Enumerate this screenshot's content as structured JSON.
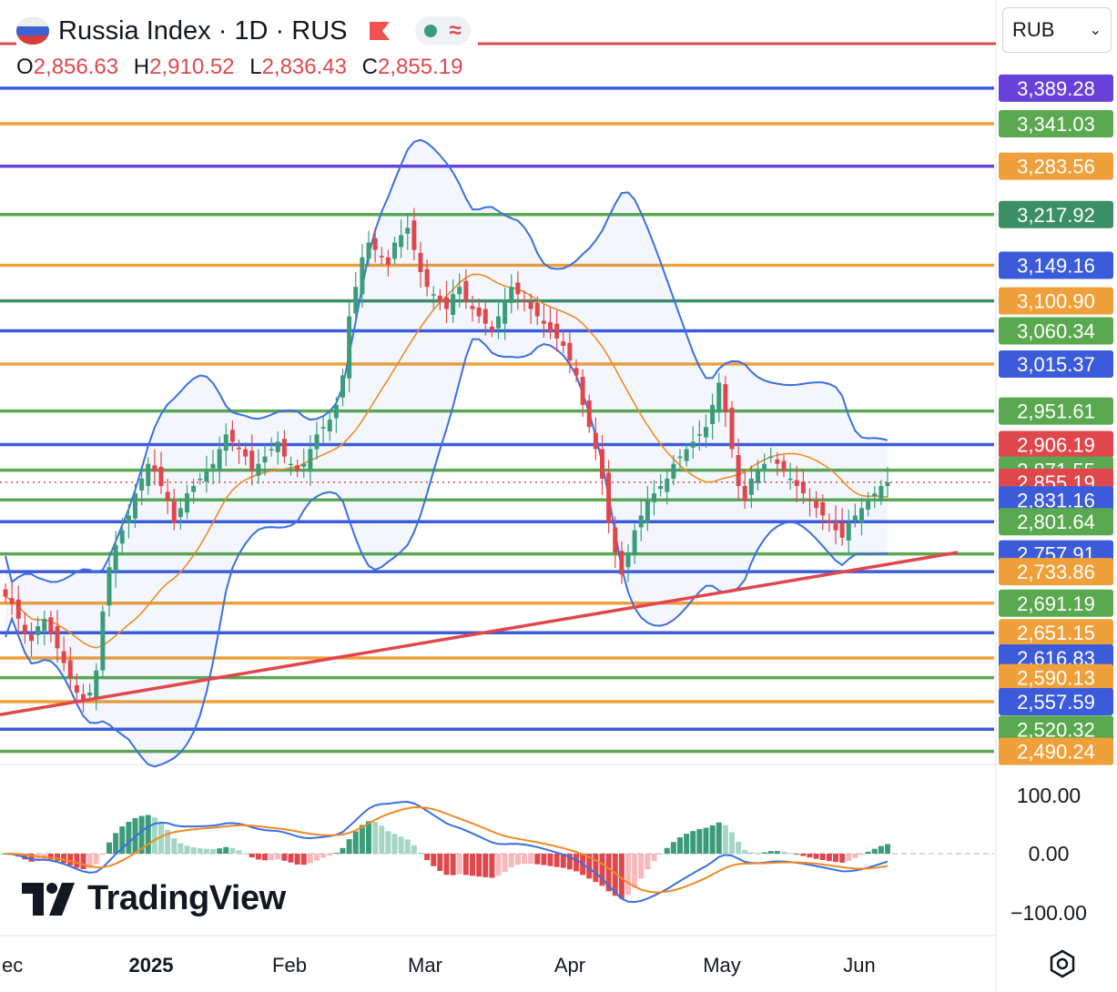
{
  "header": {
    "title": "Russia Index · 1D · RUS",
    "ohlc": [
      {
        "k": "O",
        "v": "2,856.63"
      },
      {
        "k": "H",
        "v": "2,910.52"
      },
      {
        "k": "L",
        "v": "2,836.43"
      },
      {
        "k": "C",
        "v": "2,855.19"
      }
    ],
    "pill_icons": [
      "green-dot-icon",
      "wave-icon"
    ],
    "currency": "RUB"
  },
  "branding": {
    "logo_text": "TradingView"
  },
  "chart_data": {
    "type": "candlestick",
    "price_axis": {
      "min": 2475,
      "max": 3420
    },
    "indicator_axis": {
      "ticks": [
        "100.00",
        "0.00",
        "−100.00"
      ]
    },
    "x_tick_labels": [
      "ec",
      "2025",
      "Feb",
      "Mar",
      "Apr",
      "May",
      "Jun"
    ],
    "level_lines": [
      {
        "price": 3389.28,
        "label": "3,389.28",
        "color": "#3b5bdb"
      },
      {
        "price": 3341.03,
        "label": "3,341.03",
        "color": "#f0a03a"
      },
      {
        "price": 3283.56,
        "label": "3,283.56",
        "color": "#6741d9"
      },
      {
        "price": 3217.92,
        "label": "3,217.92",
        "color": "#5aa84f"
      },
      {
        "price": 3149.16,
        "label": "3,149.16",
        "color": "#f0a03a"
      },
      {
        "price": 3100.9,
        "label": "3,100.90",
        "color": "#3b8f64"
      },
      {
        "price": 3060.34,
        "label": "3,060.34",
        "color": "#3b5bdb"
      },
      {
        "price": 3015.37,
        "label": "3,015.37",
        "color": "#f0a03a"
      },
      {
        "price": 2951.61,
        "label": "2,951.61",
        "color": "#5aa84f"
      },
      {
        "price": 2906.19,
        "label": "2,906.19",
        "color": "#3b5bdb"
      },
      {
        "price": 2871.55,
        "label": "2,871.55",
        "color": "#5aa84f"
      },
      {
        "price": 2855.19,
        "label": "2,855.19",
        "color": "#e0474c"
      },
      {
        "price": 2831.16,
        "label": "2,831.16",
        "color": "#5aa84f"
      },
      {
        "price": 2801.64,
        "label": "2,801.64",
        "color": "#3b5bdb"
      },
      {
        "price": 2757.91,
        "label": "2,757.91",
        "color": "#5aa84f"
      },
      {
        "price": 2733.86,
        "label": "2,733.86",
        "color": "#3b5bdb"
      },
      {
        "price": 2691.19,
        "label": "2,691.19",
        "color": "#f0a03a"
      },
      {
        "price": 2651.15,
        "label": "2,651.15",
        "color": "#3b5bdb"
      },
      {
        "price": 2616.83,
        "label": "2,616.83",
        "color": "#f0a03a"
      },
      {
        "price": 2590.13,
        "label": "2,590.13",
        "color": "#5aa84f"
      },
      {
        "price": 2557.59,
        "label": "2,557.59",
        "color": "#f0a03a"
      },
      {
        "price": 2520.32,
        "label": "2,520.32",
        "color": "#3b5bdb"
      },
      {
        "price": 2490.24,
        "label": "2,490.24",
        "color": "#5aa84f"
      }
    ],
    "axis_labels": [
      {
        "price": 3389.28,
        "label": "3,389.28",
        "color": "#6741d9"
      },
      {
        "price": 3341.03,
        "label": "3,341.03",
        "color": "#5aa84f"
      },
      {
        "price": 3283.56,
        "label": "3,283.56",
        "color": "#f0a03a"
      },
      {
        "price": 3217.92,
        "label": "3,217.92",
        "color": "#3b8f64"
      },
      {
        "price": 3149.16,
        "label": "3,149.16",
        "color": "#3b5bdb"
      },
      {
        "price": 3100.9,
        "label": "3,100.90",
        "color": "#f0a03a"
      },
      {
        "price": 3060.34,
        "label": "3,060.34",
        "color": "#5aa84f"
      },
      {
        "price": 3015.37,
        "label": "3,015.37",
        "color": "#3b5bdb"
      },
      {
        "price": 2951.61,
        "label": "2,951.61",
        "color": "#5aa84f"
      },
      {
        "price": 2906.19,
        "label": "2,906.19",
        "color": "#e0474c"
      },
      {
        "price": 2871.55,
        "label": "2,871.55",
        "color": "#5aa84f"
      },
      {
        "price": 2855.19,
        "label": "2,855.19",
        "color": "#e0474c"
      },
      {
        "price": 2831.16,
        "label": "2,831.16",
        "color": "#3b5bdb"
      },
      {
        "price": 2801.64,
        "label": "2,801.64",
        "color": "#5aa84f"
      },
      {
        "price": 2757.91,
        "label": "2,757.91",
        "color": "#3b5bdb"
      },
      {
        "price": 2733.86,
        "label": "2,733.86",
        "color": "#f0a03a"
      },
      {
        "price": 2691.19,
        "label": "2,691.19",
        "color": "#5aa84f"
      },
      {
        "price": 2651.15,
        "label": "2,651.15",
        "color": "#f0a03a"
      },
      {
        "price": 2616.83,
        "label": "2,616.83",
        "color": "#3b5bdb"
      },
      {
        "price": 2590.13,
        "label": "2,590.13",
        "color": "#f0a03a"
      },
      {
        "price": 2557.59,
        "label": "2,557.59",
        "color": "#3b5bdb"
      },
      {
        "price": 2520.32,
        "label": "2,520.32",
        "color": "#5aa84f"
      },
      {
        "price": 2490.24,
        "label": "2,490.24",
        "color": "#f0a03a"
      }
    ],
    "trendline": {
      "from": [
        0,
        2540
      ],
      "to": [
        1,
        2760
      ],
      "color": "#e0474c"
    },
    "colors": {
      "up": "#3c9c7a",
      "down": "#e0474c",
      "band": "#3b6fe0",
      "ma": "#f08a24",
      "macd": "#3b6fe0",
      "signal": "#f08a24"
    },
    "closes": [
      2700,
      2690,
      2670,
      2650,
      2640,
      2660,
      2670,
      2650,
      2630,
      2610,
      2590,
      2570,
      2560,
      2570,
      2600,
      2680,
      2740,
      2770,
      2790,
      2810,
      2840,
      2860,
      2880,
      2870,
      2850,
      2830,
      2800,
      2820,
      2840,
      2850,
      2860,
      2870,
      2880,
      2900,
      2920,
      2910,
      2900,
      2890,
      2870,
      2880,
      2890,
      2900,
      2910,
      2890,
      2880,
      2870,
      2880,
      2900,
      2920,
      2930,
      2940,
      2960,
      3000,
      3080,
      3120,
      3160,
      3180,
      3170,
      3160,
      3150,
      3180,
      3190,
      3200,
      3170,
      3140,
      3120,
      3110,
      3100,
      3090,
      3110,
      3120,
      3100,
      3090,
      3080,
      3070,
      3060,
      3080,
      3100,
      3120,
      3110,
      3100,
      3090,
      3080,
      3070,
      3060,
      3050,
      3040,
      3020,
      3000,
      2960,
      2930,
      2900,
      2860,
      2800,
      2760,
      2730,
      2760,
      2790,
      2810,
      2830,
      2840,
      2850,
      2860,
      2880,
      2890,
      2900,
      2910,
      2920,
      2930,
      2960,
      2990,
      2950,
      2900,
      2850,
      2830,
      2860,
      2870,
      2880,
      2890,
      2880,
      2870,
      2860,
      2850,
      2840,
      2830,
      2820,
      2810,
      2800,
      2790,
      2780,
      2800,
      2810,
      2820,
      2830,
      2840,
      2850,
      2855
    ]
  }
}
